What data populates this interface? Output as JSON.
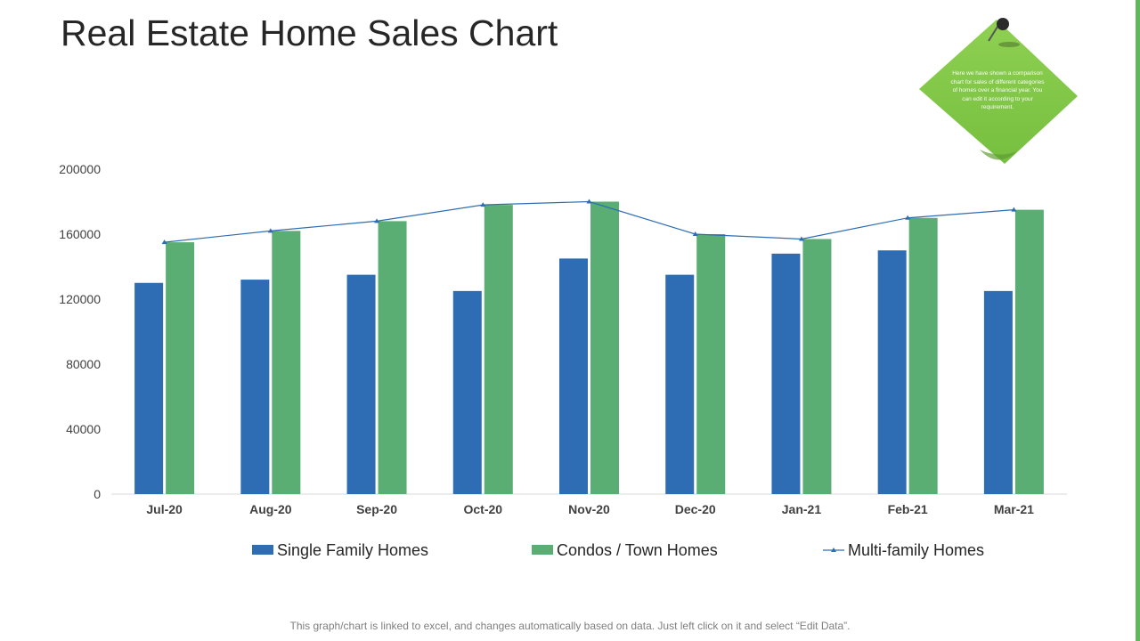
{
  "title": "Real Estate Home Sales Chart",
  "note": {
    "text": "Here we have shown a comparison chart for sales of different categories of homes over a financial year. You can edit it according to your requirement."
  },
  "footer": "This graph/chart is linked to excel, and changes automatically based on data. Just left click on it and select “Edit Data”.",
  "colors": {
    "single": "#2e6db4",
    "condos": "#5aad73",
    "multi": "#2e6db4",
    "note": "#86c94c",
    "accent": "#5fb85a"
  },
  "chart_data": {
    "type": "bar",
    "title": "",
    "xlabel": "",
    "ylabel": "",
    "ylim": [
      0,
      200000
    ],
    "yticks": [
      "0",
      "40000",
      "80000",
      "120000",
      "160000",
      "200000"
    ],
    "categories": [
      "Jul-20",
      "Aug-20",
      "Sep-20",
      "Oct-20",
      "Nov-20",
      "Dec-20",
      "Jan-21",
      "Feb-21",
      "Mar-21"
    ],
    "series": [
      {
        "name": "Single Family Homes",
        "kind": "bar",
        "values": [
          130000,
          132000,
          135000,
          125000,
          145000,
          135000,
          148000,
          150000,
          125000
        ]
      },
      {
        "name": "Condos / Town Homes",
        "kind": "bar",
        "values": [
          155000,
          162000,
          168000,
          178000,
          180000,
          160000,
          157000,
          170000,
          175000
        ]
      },
      {
        "name": "Multi-family Homes",
        "kind": "line",
        "values": [
          155000,
          162000,
          168000,
          178000,
          180000,
          160000,
          157000,
          170000,
          175000
        ]
      }
    ],
    "legend_position": "bottom"
  }
}
